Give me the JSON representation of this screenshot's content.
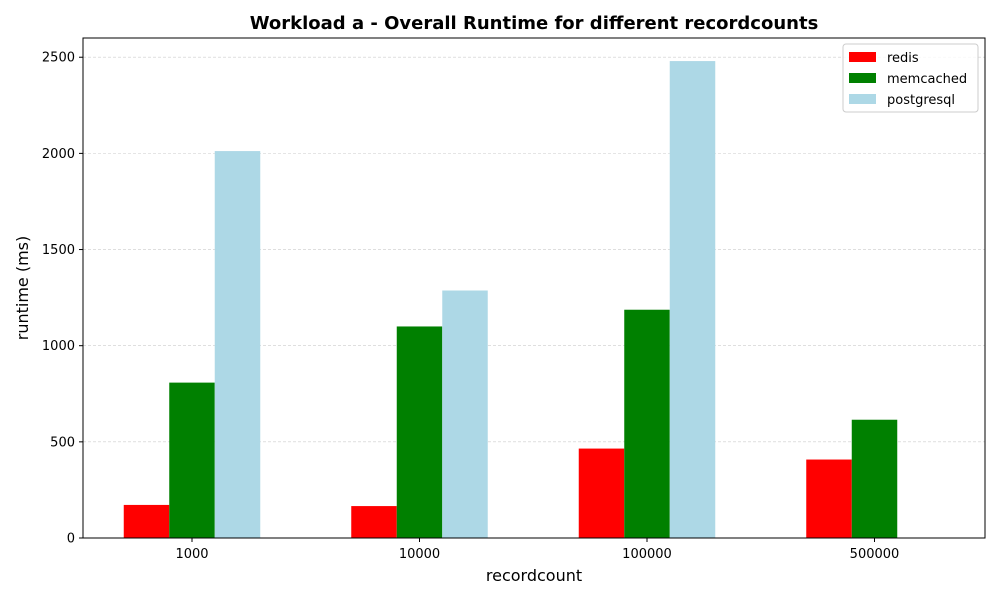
{
  "chart_data": {
    "type": "bar",
    "title": "Workload a - Overall Runtime for different recordcounts",
    "xlabel": "recordcount",
    "ylabel": "runtime (ms)",
    "categories": [
      "1000",
      "10000",
      "100000",
      "500000"
    ],
    "series": [
      {
        "name": "redis",
        "color": "#ff0000",
        "values": [
          172,
          166,
          465,
          408
        ]
      },
      {
        "name": "memcached",
        "color": "#008000",
        "values": [
          808,
          1100,
          1187,
          615
        ]
      },
      {
        "name": "postgresql",
        "color": "#add8e6",
        "values": [
          2012,
          1287,
          2480,
          null
        ]
      }
    ],
    "ylim": [
      0,
      2600
    ],
    "yticks": [
      0,
      500,
      1000,
      1500,
      2000,
      2500
    ],
    "grid": "y-dashed",
    "legend_position": "top-right"
  }
}
